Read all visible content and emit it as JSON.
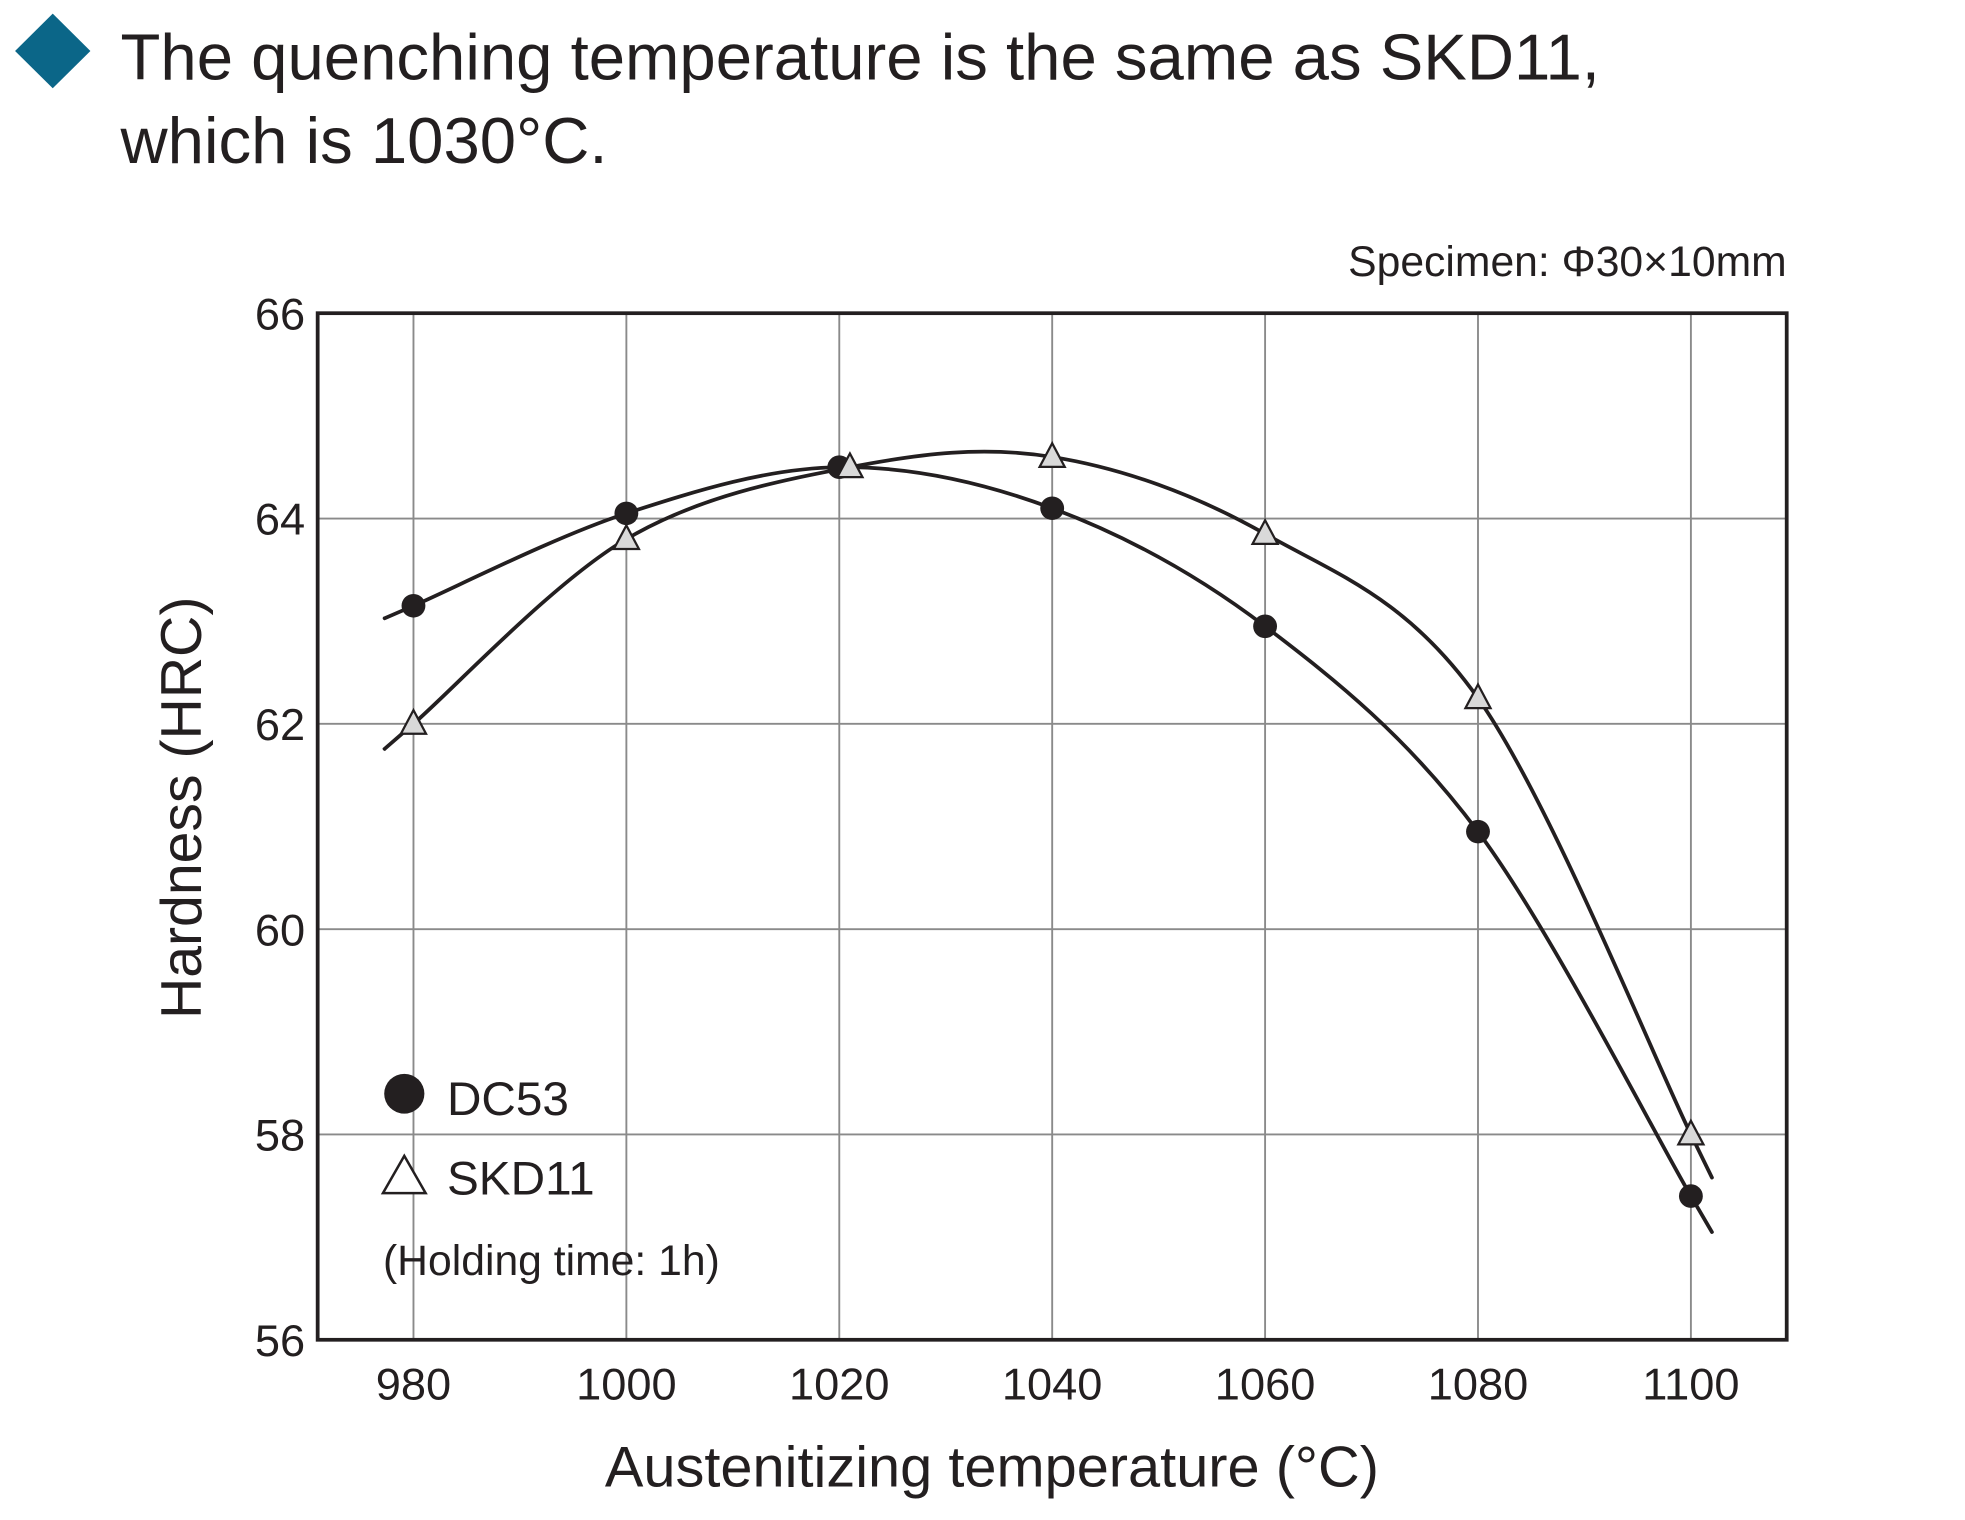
{
  "heading": {
    "line1": "The quenching temperature is the same as SKD11,",
    "line2": "which is 1030°C.",
    "bullet_color": "#0b6688"
  },
  "chart_data": {
    "type": "line",
    "note": "Specimen: Φ30×10mm",
    "xlabel": "Austenitizing temperature  (°C)",
    "ylabel": "Hardness (HRC)",
    "xlim": [
      971,
      1109
    ],
    "ylim": [
      56,
      66
    ],
    "xticks": [
      980,
      1000,
      1020,
      1040,
      1060,
      1080,
      1100
    ],
    "xtick_labels": [
      "980",
      "1000",
      "1020",
      "1040",
      "1060",
      "1080",
      "1100"
    ],
    "yticks": [
      56,
      58,
      60,
      62,
      64,
      66
    ],
    "ytick_labels": [
      "56",
      "58",
      "60",
      "62",
      "64",
      "66"
    ],
    "grid": true,
    "legend_position": "bottom-left",
    "legend_note": "(Holding time: 1h)",
    "series": [
      {
        "name": "DC53",
        "marker": "filled-circle",
        "x": [
          980,
          1000,
          1020,
          1040,
          1060,
          1080,
          1100
        ],
        "y": [
          63.15,
          64.05,
          64.5,
          64.1,
          62.95,
          60.95,
          57.4
        ]
      },
      {
        "name": "SKD11",
        "marker": "open-triangle",
        "x": [
          980,
          1000,
          1021,
          1040,
          1060,
          1080,
          1100
        ],
        "y": [
          62.0,
          63.8,
          64.5,
          64.6,
          63.85,
          62.25,
          58.0
        ]
      }
    ]
  }
}
